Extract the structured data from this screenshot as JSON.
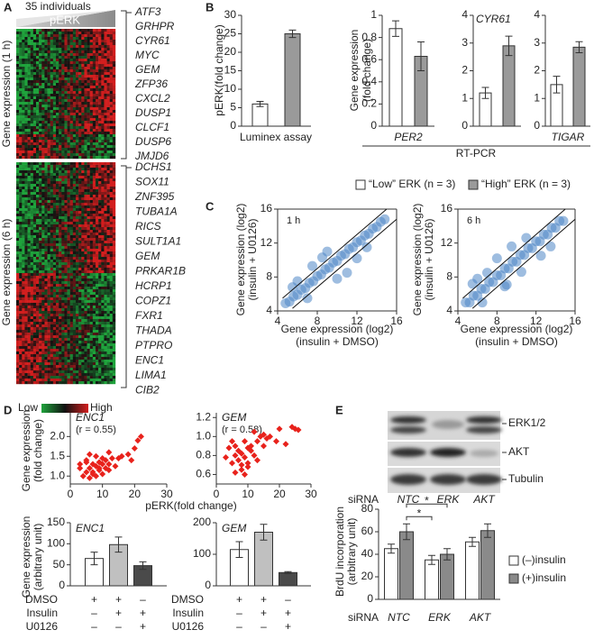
{
  "panel_letters": [
    "A",
    "B",
    "C",
    "D",
    "E"
  ],
  "heatmap": {
    "header": "35 individuals",
    "bar_label": "pERK",
    "section_labels": [
      "Gene expression (1 h)",
      "Gene expression (6 h)"
    ],
    "genes_1h": [
      "ATF3",
      "GRHPR",
      "CYR61",
      "MYC",
      "GEM",
      "ZFP36",
      "CXCL2",
      "DUSP1",
      "CLCF1",
      "DUSP6",
      "JMJD6"
    ],
    "genes_6h": [
      "DCHS1",
      "SOX11",
      "ZNF395",
      "TUBA1A",
      "RICS",
      "SULT1A1",
      "GEM",
      "PRKAR1B",
      "HCRP1",
      "COPZ1",
      "FXR1",
      "THADA",
      "PTPRO",
      "ENC1",
      "LIMA1",
      "CIB2"
    ],
    "scale": [
      "Low",
      "High"
    ]
  },
  "rt_pcr_label": "RT-PCR",
  "blot": {
    "bands": [
      "ERK1/2",
      "AKT",
      "Tubulin"
    ],
    "sirna_label": "siRNA",
    "lanes": [
      "NTC",
      "ERK",
      "AKT"
    ]
  },
  "chart_data": [
    {
      "type": "bar",
      "ylabel": "pERK(fold change)",
      "xlabel": "Luminex assay",
      "categories": [
        null
      ],
      "series": [
        {
          "name": "“Low” ERK (n = 3)",
          "color": "#ffffff",
          "values": [
            6
          ],
          "errors": [
            0.7
          ]
        },
        {
          "name": "“High” ERK (n = 3)",
          "color": "#9a9a9a",
          "values": [
            25
          ],
          "errors": [
            1
          ]
        }
      ],
      "ylim": [
        0,
        30
      ],
      "yticks": [
        0,
        5,
        10,
        15,
        20,
        25,
        30
      ]
    },
    {
      "type": "bar",
      "ylabel": [
        "Gene expression",
        "(fold change)"
      ],
      "categories": [
        "PER2"
      ],
      "series": [
        {
          "color": "#ffffff",
          "values": [
            0.88
          ],
          "errors": [
            0.07
          ]
        },
        {
          "color": "#9a9a9a",
          "values": [
            0.63
          ],
          "errors": [
            0.13
          ]
        }
      ],
      "ylim": [
        0,
        1
      ],
      "yticks": [
        0,
        0.2,
        0.4,
        0.6,
        0.8,
        1
      ]
    },
    {
      "type": "bar",
      "title": "CYR61",
      "categories": [
        null
      ],
      "series": [
        {
          "color": "#ffffff",
          "values": [
            1.2
          ],
          "errors": [
            0.2
          ]
        },
        {
          "color": "#9a9a9a",
          "values": [
            2.9
          ],
          "errors": [
            0.35
          ]
        }
      ],
      "ylim": [
        0,
        4
      ],
      "yticks": [
        0,
        1,
        2,
        3,
        4
      ]
    },
    {
      "type": "bar",
      "categories": [
        "TIGAR"
      ],
      "series": [
        {
          "color": "#ffffff",
          "values": [
            1.5
          ],
          "errors": [
            0.3
          ]
        },
        {
          "color": "#9a9a9a",
          "values": [
            2.85
          ],
          "errors": [
            0.2
          ]
        }
      ],
      "ylim": [
        0,
        4
      ],
      "yticks": [
        0,
        1,
        2,
        3,
        4
      ]
    },
    {
      "type": "scatter",
      "annotation": "1 h",
      "marker": "circle",
      "color": "#4f86c6",
      "ylabel": [
        "Gene expression (log2)",
        "(insulin + U0126)"
      ],
      "xlabel": [
        "Gene expression (log2)",
        "(insulin + DMSO)"
      ],
      "x": [
        4.8,
        5.2,
        5.6,
        6.0,
        6.4,
        6.8,
        7.2,
        7.6,
        8.0,
        8.4,
        8.8,
        9.2,
        9.6,
        10.0,
        10.4,
        10.8,
        11.2,
        11.6,
        12.0,
        12.4,
        12.8,
        13.2,
        13.6,
        14.0,
        14.4,
        14.8,
        6,
        7,
        8.5,
        10,
        11,
        12,
        9,
        5.5,
        13,
        7.5
      ],
      "y": [
        4.9,
        5.1,
        5.7,
        5.9,
        6.5,
        6.7,
        7.3,
        7.5,
        8.1,
        8.3,
        8.9,
        9.1,
        9.7,
        9.9,
        10.5,
        10.7,
        11.3,
        11.5,
        12.1,
        12.3,
        12.9,
        13.1,
        13.7,
        13.9,
        14.5,
        14.8,
        7.5,
        5.5,
        10.3,
        7.8,
        8.5,
        10.2,
        11,
        6.8,
        11.5,
        9.3
      ],
      "lines": [
        {
          "x": [
            4.5,
            15
          ],
          "y": [
            5.5,
            16
          ]
        },
        {
          "x": [
            5.5,
            16
          ],
          "y": [
            4.3,
            14.8
          ]
        }
      ],
      "xlim": [
        4,
        16
      ],
      "xticks": [
        4,
        8,
        12,
        16
      ],
      "ylim": [
        4,
        16
      ],
      "yticks": [
        4,
        8,
        12,
        16
      ]
    },
    {
      "type": "scatter",
      "annotation": "6 h",
      "marker": "circle",
      "color": "#4f86c6",
      "ylabel": [
        "Gene expression (log2)",
        "(insulin + U0126)"
      ],
      "xlabel": [
        "Gene expression (log2)",
        "(insulin + DMSO)"
      ],
      "x": [
        4.8,
        5.2,
        5.6,
        6.0,
        6.4,
        6.8,
        7.2,
        7.6,
        8.0,
        8.4,
        8.8,
        9.2,
        9.6,
        10.0,
        10.4,
        10.8,
        11.2,
        11.6,
        12.0,
        12.4,
        12.8,
        13.2,
        13.6,
        14.0,
        14.4,
        14.8,
        5.5,
        6.5,
        7,
        8,
        9,
        9.5,
        10.5,
        11,
        12.5,
        13.5,
        6,
        8.8
      ],
      "y": [
        5.0,
        5.0,
        5.8,
        5.8,
        6.6,
        6.6,
        7.4,
        7.4,
        8.2,
        8.2,
        9.0,
        9.0,
        9.8,
        9.8,
        10.6,
        10.6,
        11.4,
        11.4,
        12.2,
        12.2,
        13.0,
        13.0,
        13.8,
        13.8,
        14.6,
        14.6,
        7.2,
        5.0,
        8.5,
        10.2,
        7.1,
        11.6,
        8.6,
        12.6,
        10.5,
        11.6,
        7.8,
        6.9
      ],
      "lines": [
        {
          "x": [
            4.5,
            15
          ],
          "y": [
            5.5,
            16
          ]
        },
        {
          "x": [
            5.5,
            16
          ],
          "y": [
            4.3,
            14.8
          ]
        }
      ],
      "xlim": [
        4,
        16
      ],
      "xticks": [
        4,
        8,
        12,
        16
      ],
      "ylim": [
        4,
        16
      ],
      "yticks": [
        4,
        8,
        12,
        16
      ]
    },
    {
      "type": "scatter",
      "title": "ENC1",
      "annotation": "(r = 0.55)",
      "marker": "diamond",
      "color": "#e8221c",
      "ylabel": [
        "Gene expression",
        "(fold change)"
      ],
      "xlabel": "pERK(fold change)",
      "x": [
        3,
        4,
        5,
        5,
        6,
        6,
        7,
        7,
        8,
        8,
        8,
        9,
        9,
        10,
        10,
        11,
        11,
        12,
        12,
        13,
        14,
        15,
        16,
        18,
        20,
        21,
        22,
        5,
        7,
        9,
        3,
        6,
        12,
        10,
        19
      ],
      "y": [
        1.3,
        1.0,
        1.1,
        1.4,
        1.2,
        0.95,
        1.3,
        1.1,
        1.25,
        1.5,
        1.0,
        1.2,
        1.35,
        1.3,
        1.05,
        1.4,
        1.2,
        1.3,
        1.6,
        1.45,
        1.25,
        1.45,
        1.5,
        1.55,
        1.7,
        1.9,
        2.0,
        1.35,
        1.05,
        1.15,
        1.2,
        1.55,
        1.15,
        1.45,
        1.4
      ],
      "xlim": [
        0,
        30
      ],
      "xticks": [
        0,
        10,
        20,
        30
      ],
      "ylim": [
        0.8,
        2.6
      ],
      "yticks": [
        {
          "value": 1,
          "label": "1.0"
        },
        1.5,
        {
          "value": 2,
          "label": "2.0"
        }
      ]
    },
    {
      "type": "scatter",
      "title": "GEM",
      "annotation": "(r = 0.58)",
      "marker": "diamond",
      "color": "#e8221c",
      "x": [
        3,
        4,
        5,
        5,
        6,
        6,
        7,
        7,
        8,
        8,
        9,
        9,
        10,
        10,
        11,
        11,
        12,
        12,
        13,
        14,
        15,
        15,
        16,
        17,
        19,
        20,
        24,
        25,
        26,
        6,
        8,
        10,
        13,
        9,
        22
      ],
      "y": [
        0.78,
        0.88,
        0.72,
        0.95,
        0.8,
        0.9,
        0.75,
        0.85,
        0.7,
        0.82,
        0.78,
        0.95,
        0.88,
        0.72,
        0.85,
        0.9,
        0.8,
        1.05,
        0.95,
        1.0,
        0.9,
        1.02,
        0.98,
        1.0,
        0.95,
        1.08,
        1.1,
        1.08,
        1.07,
        0.62,
        0.65,
        0.68,
        0.75,
        0.6,
        0.92
      ],
      "xlim": [
        0,
        30
      ],
      "xticks": [
        0,
        10,
        20,
        30
      ],
      "ylim": [
        0.5,
        1.25
      ],
      "yticks": [
        0.6,
        0.8,
        {
          "value": 1,
          "label": "1.0"
        },
        1.2
      ]
    },
    {
      "type": "bar",
      "title": "ENC1",
      "ylabel": [
        "Gene expression",
        "(arbitrary unit)"
      ],
      "categories": [
        null
      ],
      "series": [
        {
          "color": "#ffffff",
          "values": [
            65
          ],
          "errors": [
            15
          ]
        },
        {
          "color": "#c0c0c0",
          "values": [
            98
          ],
          "errors": [
            18
          ]
        },
        {
          "color": "#4a4a4a",
          "values": [
            48
          ],
          "errors": [
            9
          ]
        }
      ],
      "treatments": [
        {
          "name": "DMSO",
          "marks": [
            "+",
            "+",
            "–"
          ]
        },
        {
          "name": "Insulin",
          "marks": [
            "–",
            "+",
            "+"
          ]
        },
        {
          "name": "U0126",
          "marks": [
            "–",
            "–",
            "+"
          ]
        }
      ],
      "ylim": [
        0,
        150
      ],
      "yticks": [
        0,
        50,
        100,
        150
      ]
    },
    {
      "type": "bar",
      "title": "GEM",
      "categories": [
        null
      ],
      "series": [
        {
          "color": "#ffffff",
          "values": [
            115
          ],
          "errors": [
            25
          ]
        },
        {
          "color": "#c0c0c0",
          "values": [
            170
          ],
          "errors": [
            25
          ]
        },
        {
          "color": "#4a4a4a",
          "values": [
            42
          ],
          "errors": [
            3
          ]
        }
      ],
      "treatments": [
        {
          "name": "DMSO",
          "marks": [
            "+",
            "+",
            "–"
          ]
        },
        {
          "name": "Insulin",
          "marks": [
            "–",
            "+",
            "+"
          ]
        },
        {
          "name": "U0126",
          "marks": [
            "–",
            "–",
            "+"
          ]
        }
      ],
      "ylim": [
        0,
        200
      ],
      "yticks": [
        0,
        100,
        200
      ]
    },
    {
      "type": "bar",
      "ylabel": [
        "BrdU incorporation",
        "(arbitrary unit)"
      ],
      "xlabel": "siRNA",
      "categories": [
        "NTC",
        "ERK",
        "AKT"
      ],
      "series": [
        {
          "name": "(–)insulin",
          "color": "#ffffff",
          "values": [
            45,
            35,
            51
          ],
          "errors": [
            4,
            4,
            4
          ]
        },
        {
          "name": "(+)insulin",
          "color": "#8a8a8a",
          "values": [
            60,
            40,
            61
          ],
          "errors": [
            7,
            5,
            6
          ]
        }
      ],
      "annotations": [
        "*",
        "*"
      ],
      "ylim": [
        0,
        80
      ],
      "yticks": [
        0,
        20,
        40,
        60,
        80
      ]
    }
  ]
}
